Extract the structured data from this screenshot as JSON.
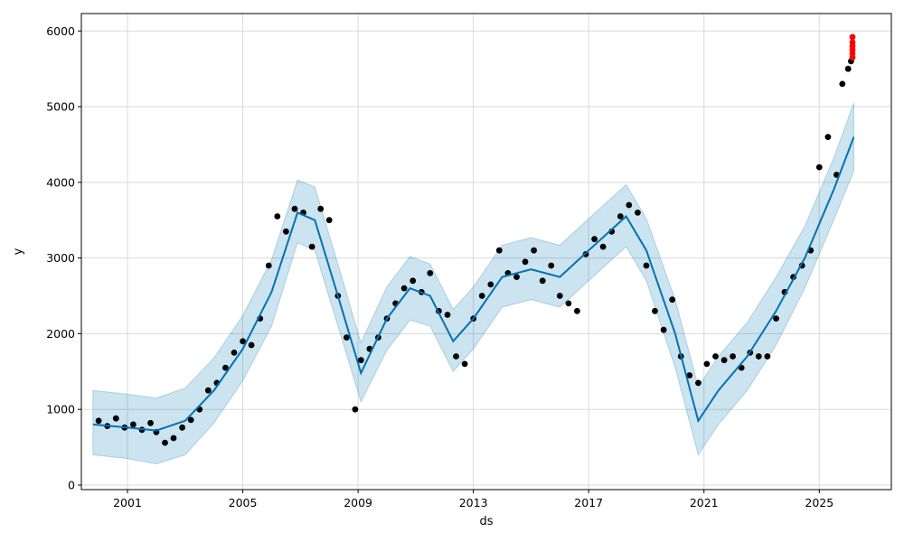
{
  "chart_data": {
    "type": "scatter",
    "title": "",
    "xlabel": "ds",
    "ylabel": "y",
    "grid": true,
    "xlim": [
      1999.4,
      2027.5
    ],
    "ylim": [
      -60,
      6230
    ],
    "x_ticks": [
      2001,
      2005,
      2009,
      2013,
      2017,
      2021,
      2025
    ],
    "x_tick_labels": [
      "2001",
      "2005",
      "2009",
      "2013",
      "2017",
      "2021",
      "2025"
    ],
    "y_ticks": [
      0,
      1000,
      2000,
      3000,
      4000,
      5000,
      6000
    ],
    "y_tick_labels": [
      "0",
      "1000",
      "2000",
      "3000",
      "4000",
      "5000",
      "6000"
    ],
    "colors": {
      "observed": "#000000",
      "forecast": "#0072B2",
      "interval": "#0072B2",
      "highlight": "#ff0000",
      "grid": "#d9d9d9"
    },
    "series": [
      {
        "kind": "observed",
        "x": [
          2000.0,
          2000.3,
          2000.6,
          2000.9,
          2001.2,
          2001.5,
          2001.8,
          2002.0,
          2002.3,
          2002.6,
          2002.9,
          2003.2,
          2003.5,
          2003.8,
          2004.1,
          2004.4,
          2004.7,
          2005.0,
          2005.3,
          2005.6,
          2005.9,
          2006.2,
          2006.5,
          2006.8,
          2007.1,
          2007.4,
          2007.7,
          2008.0,
          2008.3,
          2008.6,
          2008.9,
          2009.1,
          2009.4,
          2009.7,
          2010.0,
          2010.3,
          2010.6,
          2010.9,
          2011.2,
          2011.5,
          2011.8,
          2012.1,
          2012.4,
          2012.7,
          2013.0,
          2013.3,
          2013.6,
          2013.9,
          2014.2,
          2014.5,
          2014.8,
          2015.1,
          2015.4,
          2015.7,
          2016.0,
          2016.3,
          2016.6,
          2016.9,
          2017.2,
          2017.5,
          2017.8,
          2018.1,
          2018.4,
          2018.7,
          2019.0,
          2019.3,
          2019.6,
          2019.9,
          2020.2,
          2020.5,
          2020.8,
          2021.1,
          2021.4,
          2021.7,
          2022.0,
          2022.3,
          2022.6,
          2022.9,
          2023.2,
          2023.5,
          2023.8,
          2024.1,
          2024.4,
          2024.7,
          2025.0,
          2025.3,
          2025.6,
          2025.8,
          2026.0,
          2026.1
        ],
        "y": [
          850,
          780,
          880,
          760,
          800,
          730,
          820,
          700,
          560,
          620,
          760,
          860,
          1000,
          1250,
          1350,
          1550,
          1750,
          1900,
          1850,
          2200,
          2900,
          3550,
          3350,
          3650,
          3600,
          3150,
          3650,
          3500,
          2500,
          1950,
          1000,
          1650,
          1800,
          1950,
          2200,
          2400,
          2600,
          2700,
          2550,
          2800,
          2300,
          2250,
          1700,
          1600,
          2200,
          2500,
          2650,
          3100,
          2800,
          2750,
          2950,
          3100,
          2700,
          2900,
          2500,
          2400,
          2300,
          3050,
          3250,
          3150,
          3350,
          3550,
          3700,
          3600,
          2900,
          2300,
          2050,
          2450,
          1700,
          1450,
          1350,
          1600,
          1700,
          1650,
          1700,
          1550,
          1750,
          1700,
          1700,
          2200,
          2550,
          2750,
          2900,
          3100,
          4200,
          4600,
          4100,
          5300,
          5500,
          5600
        ]
      },
      {
        "kind": "forecast",
        "x": [
          1999.8,
          2001.0,
          2002.0,
          2003.0,
          2004.0,
          2005.0,
          2006.0,
          2006.9,
          2007.5,
          2008.3,
          2009.1,
          2010.0,
          2010.8,
          2011.5,
          2012.3,
          2013.0,
          2014.0,
          2015.0,
          2016.0,
          2017.0,
          2018.3,
          2019.0,
          2020.0,
          2020.8,
          2021.5,
          2022.5,
          2023.5,
          2024.5,
          2025.5,
          2026.2
        ],
        "y": [
          800,
          760,
          720,
          850,
          1250,
          1800,
          2550,
          3600,
          3500,
          2500,
          1480,
          2200,
          2600,
          2500,
          1900,
          2200,
          2750,
          2850,
          2750,
          3100,
          3550,
          3100,
          2000,
          850,
          1250,
          1700,
          2300,
          3000,
          3900,
          4600
        ]
      },
      {
        "kind": "interval",
        "x": [
          1999.8,
          2001.0,
          2002.0,
          2003.0,
          2004.0,
          2005.0,
          2006.0,
          2006.9,
          2007.5,
          2008.3,
          2009.1,
          2010.0,
          2010.8,
          2011.5,
          2012.3,
          2013.0,
          2014.0,
          2015.0,
          2016.0,
          2017.0,
          2018.3,
          2019.0,
          2020.0,
          2020.8,
          2021.5,
          2022.5,
          2023.5,
          2024.5,
          2025.5,
          2026.2
        ],
        "lower": [
          400,
          350,
          280,
          400,
          820,
          1380,
          2100,
          3200,
          3100,
          2100,
          1100,
          1780,
          2180,
          2100,
          1500,
          1800,
          2350,
          2450,
          2350,
          2700,
          3150,
          2700,
          1550,
          400,
          800,
          1250,
          1850,
          2600,
          3500,
          4150
        ],
        "upper": [
          1250,
          1200,
          1150,
          1280,
          1680,
          2240,
          2980,
          4030,
          3940,
          2920,
          1880,
          2620,
          3020,
          2920,
          2320,
          2620,
          3170,
          3270,
          3170,
          3520,
          3970,
          3520,
          2450,
          1300,
          1700,
          2150,
          2750,
          3420,
          4320,
          5050
        ]
      },
      {
        "kind": "highlight",
        "x": [
          2026.15,
          2026.15,
          2026.15,
          2026.15,
          2026.15,
          2026.15
        ],
        "y": [
          5650,
          5700,
          5750,
          5800,
          5850,
          5920
        ]
      }
    ]
  }
}
